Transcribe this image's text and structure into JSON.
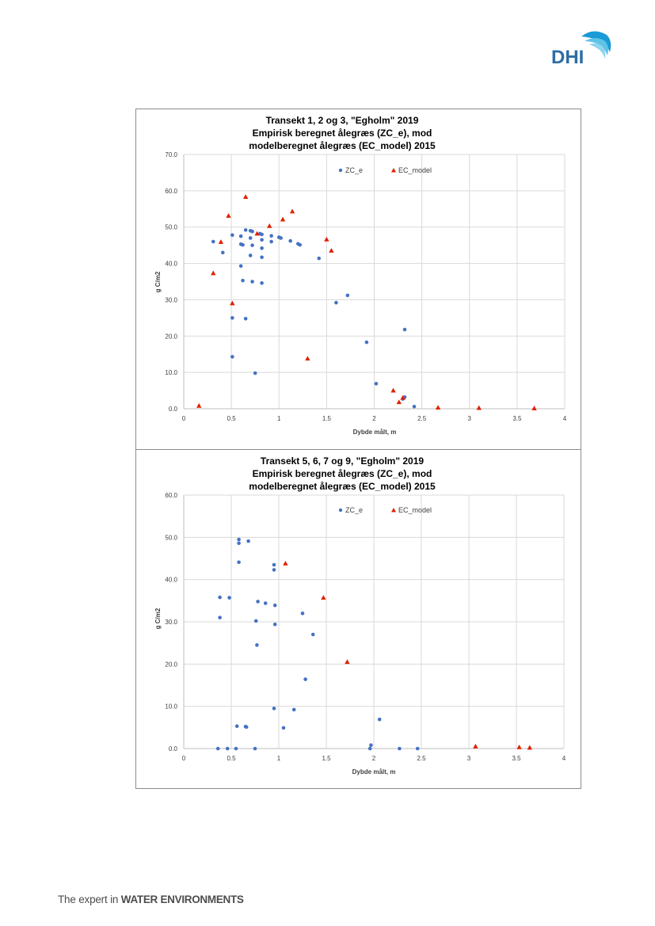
{
  "logo": {
    "text": "DHI",
    "color": "#2e6da4"
  },
  "footer": {
    "tagline_plain": "The expert in",
    "tagline_bold": "WATER ENVIRONMENTS"
  },
  "colors": {
    "zc_e": "#4472c4",
    "ec_model": "#e02000",
    "grid": "#d9d9d9"
  },
  "chart_data": [
    {
      "type": "scatter",
      "title_lines": [
        "Transekt  1, 2 og 3, \"Egholm\"  2019",
        "Empirisk  beregnet ålegræs (ZC_e),  mod",
        "modelberegnet  ålegræs (EC_model) 2015"
      ],
      "xlabel": "Dybde målt, m",
      "ylabel": "g C/m2",
      "xlim": [
        0,
        4
      ],
      "ylim": [
        0,
        70
      ],
      "xticks": [
        "0",
        "0.5",
        "1",
        "1.5",
        "2",
        "2.5",
        "3",
        "3.5",
        "4"
      ],
      "yticks": [
        "0.0",
        "10.0",
        "20.0",
        "30.0",
        "40.0",
        "50.0",
        "60.0",
        "70.0"
      ],
      "grid": true,
      "legend": "top-center",
      "series": [
        {
          "name": "ZC_e",
          "marker": "circle",
          "points": [
            [
              0.31,
              46.0
            ],
            [
              0.41,
              43.0
            ],
            [
              0.51,
              47.8
            ],
            [
              0.51,
              25.0
            ],
            [
              0.51,
              14.3
            ],
            [
              0.6,
              47.5
            ],
            [
              0.6,
              45.3
            ],
            [
              0.62,
              45.1
            ],
            [
              0.6,
              39.3
            ],
            [
              0.62,
              35.3
            ],
            [
              0.65,
              49.2
            ],
            [
              0.65,
              24.8
            ],
            [
              0.7,
              49.0
            ],
            [
              0.72,
              48.8
            ],
            [
              0.7,
              47.0
            ],
            [
              0.72,
              45.0
            ],
            [
              0.7,
              42.2
            ],
            [
              0.72,
              35.0
            ],
            [
              0.75,
              9.8
            ],
            [
              0.8,
              48.2
            ],
            [
              0.82,
              48.0
            ],
            [
              0.82,
              46.5
            ],
            [
              0.82,
              44.2
            ],
            [
              0.82,
              41.7
            ],
            [
              0.82,
              34.6
            ],
            [
              0.92,
              47.6
            ],
            [
              0.92,
              46.0
            ],
            [
              1.0,
              47.2
            ],
            [
              1.02,
              47.0
            ],
            [
              1.12,
              46.2
            ],
            [
              1.2,
              45.4
            ],
            [
              1.22,
              45.1
            ],
            [
              1.42,
              41.4
            ],
            [
              1.6,
              29.2
            ],
            [
              1.72,
              31.2
            ],
            [
              1.92,
              18.3
            ],
            [
              2.02,
              6.9
            ],
            [
              2.3,
              2.7
            ],
            [
              2.32,
              3.2
            ],
            [
              2.32,
              21.8
            ],
            [
              2.42,
              0.6
            ]
          ]
        },
        {
          "name": "EC_model",
          "marker": "triangle",
          "points": [
            [
              0.16,
              0.8
            ],
            [
              0.31,
              37.3
            ],
            [
              0.39,
              45.9
            ],
            [
              0.47,
              53.1
            ],
            [
              0.51,
              29.0
            ],
            [
              0.65,
              58.3
            ],
            [
              0.77,
              48.2
            ],
            [
              0.9,
              50.3
            ],
            [
              1.04,
              52.1
            ],
            [
              1.14,
              54.3
            ],
            [
              1.3,
              13.8
            ],
            [
              1.5,
              46.6
            ],
            [
              1.55,
              43.5
            ],
            [
              2.2,
              5.0
            ],
            [
              2.26,
              1.8
            ],
            [
              2.3,
              3.0
            ],
            [
              2.67,
              0.3
            ],
            [
              3.1,
              0.2
            ],
            [
              3.68,
              0.1
            ]
          ]
        }
      ]
    },
    {
      "type": "scatter",
      "title_lines": [
        "Transekt  5, 6, 7 og 9, \"Egholm\"  2019",
        "Empirisk  beregnet ålegræs (ZC_e),  mod",
        "modelberegnet  ålegræs (EC_model) 2015"
      ],
      "xlabel": "Dybde målt, m",
      "ylabel": "g C/m2",
      "xlim": [
        0,
        4
      ],
      "ylim": [
        0,
        60
      ],
      "xticks": [
        "0",
        "0.5",
        "1",
        "1.5",
        "2",
        "2.5",
        "3",
        "3.5",
        "4"
      ],
      "yticks": [
        "0.0",
        "10.0",
        "20.0",
        "30.0",
        "40.0",
        "50.0",
        "60.0"
      ],
      "grid": true,
      "legend": "top-center",
      "series": [
        {
          "name": "ZC_e",
          "marker": "circle",
          "points": [
            [
              0.36,
              0.0
            ],
            [
              0.38,
              35.8
            ],
            [
              0.38,
              31.0
            ],
            [
              0.46,
              0.0
            ],
            [
              0.48,
              35.7
            ],
            [
              0.55,
              0.0
            ],
            [
              0.56,
              5.3
            ],
            [
              0.58,
              49.5
            ],
            [
              0.58,
              48.6
            ],
            [
              0.58,
              44.1
            ],
            [
              0.65,
              5.2
            ],
            [
              0.66,
              5.1
            ],
            [
              0.68,
              49.1
            ],
            [
              0.75,
              0.0
            ],
            [
              0.76,
              30.2
            ],
            [
              0.77,
              24.5
            ],
            [
              0.78,
              34.8
            ],
            [
              0.86,
              34.4
            ],
            [
              0.95,
              43.5
            ],
            [
              0.95,
              42.3
            ],
            [
              0.95,
              9.5
            ],
            [
              0.96,
              33.9
            ],
            [
              0.96,
              29.4
            ],
            [
              1.05,
              4.9
            ],
            [
              1.16,
              9.2
            ],
            [
              1.25,
              32.0
            ],
            [
              1.28,
              16.4
            ],
            [
              1.36,
              27.0
            ],
            [
              1.96,
              0.0
            ],
            [
              1.97,
              0.8
            ],
            [
              2.06,
              6.9
            ],
            [
              2.27,
              0.0
            ],
            [
              2.46,
              0.0
            ]
          ]
        },
        {
          "name": "EC_model",
          "marker": "triangle",
          "points": [
            [
              1.07,
              43.8
            ],
            [
              1.47,
              35.7
            ],
            [
              1.72,
              20.5
            ],
            [
              3.07,
              0.5
            ],
            [
              3.53,
              0.3
            ],
            [
              3.64,
              0.2
            ]
          ]
        }
      ]
    }
  ]
}
